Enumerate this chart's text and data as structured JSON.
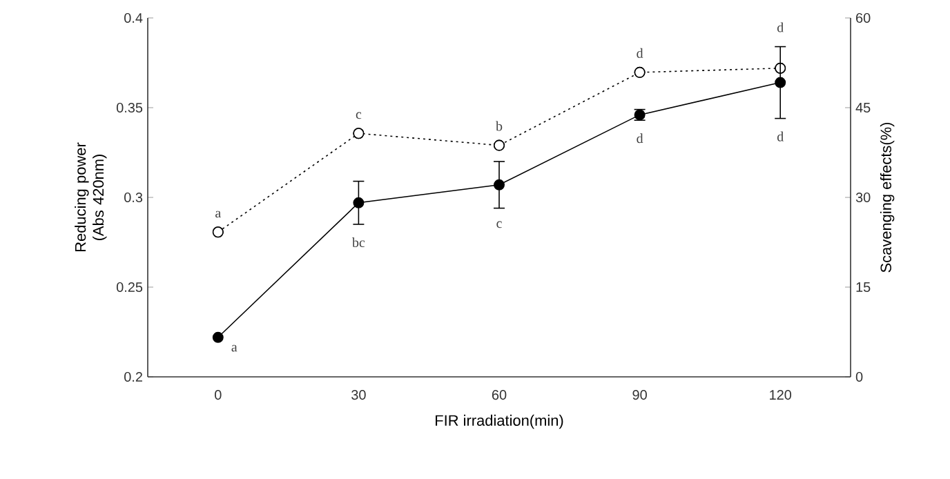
{
  "chart_data": {
    "type": "line",
    "xlabel": "FIR irradiation(min)",
    "ylabel": "Reducing power (Abs 420nm)",
    "y2label": "Scavenging effects(%)",
    "categories": [
      "0",
      "30",
      "60",
      "90",
      "120"
    ],
    "series": [
      {
        "color": "#000000",
        "marker": "circle",
        "line_style": "solid",
        "values": [
          0.222,
          0.297,
          0.307,
          0.346,
          0.364
        ],
        "errors": [
          null,
          0.012,
          0.013,
          0.003,
          0.02
        ]
      },
      {
        "color": "#000000",
        "colors": [
          "#ffffff",
          "#ffffff",
          "#ffffff",
          "#ffffff",
          "#ffffff"
        ],
        "marker": "circle",
        "line_style": "dotted",
        "axis": "y2",
        "values": [
          24.2,
          40.7,
          38.7,
          50.9,
          51.6
        ]
      }
    ],
    "ylim": [
      0.2,
      0.4
    ],
    "yticks": [
      0.2,
      0.25,
      0.3,
      0.35,
      0.4
    ],
    "y2lim": [
      0,
      60
    ],
    "y2ticks": [
      0,
      15,
      30,
      45,
      60
    ],
    "annotations": [
      "a",
      "c",
      "b",
      "d",
      "d",
      "a",
      "bc",
      "c",
      "d",
      "d"
    ]
  }
}
